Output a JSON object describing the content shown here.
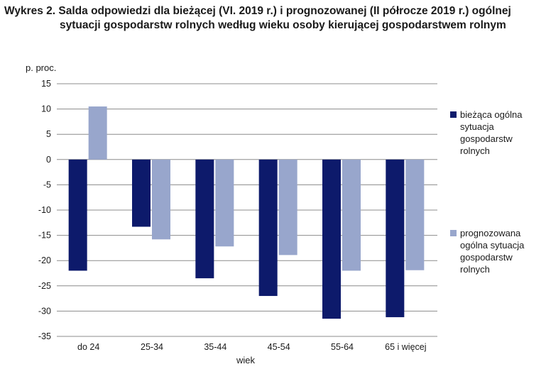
{
  "title_line1": "Wykres 2. Salda odpowiedzi dla bieżącej (VI. 2019 r.) i prognozowanej (II półrocze 2019 r.) ogólnej",
  "title_line2": "sytuacji gospodarstw rolnych według wieku osoby kierującej gospodarstwem rolnym",
  "chart_data": {
    "type": "bar",
    "categories": [
      "do 24",
      "25-34",
      "35-44",
      "45-54",
      "55-64",
      "65 i więcej"
    ],
    "series": [
      {
        "name": "bieżąca ogólna sytuacja gospodarstw rolnych",
        "values": [
          -22,
          -13.3,
          -23.5,
          -27,
          -31.5,
          -31.2
        ],
        "color": "#0d1a6b"
      },
      {
        "name": "prognozowana ogólna sytuacja gospodarstw rolnych",
        "values": [
          10.5,
          -15.8,
          -17.2,
          -18.9,
          -22,
          -21.9
        ],
        "color": "#98a6cc"
      }
    ],
    "ylabel": "p. proc.",
    "xlabel": "wiek",
    "ylim": [
      -35,
      15
    ],
    "yticks": [
      15,
      10,
      5,
      0,
      -5,
      -10,
      -15,
      -20,
      -25,
      -30,
      -35
    ],
    "grid": true,
    "legend": "right"
  }
}
